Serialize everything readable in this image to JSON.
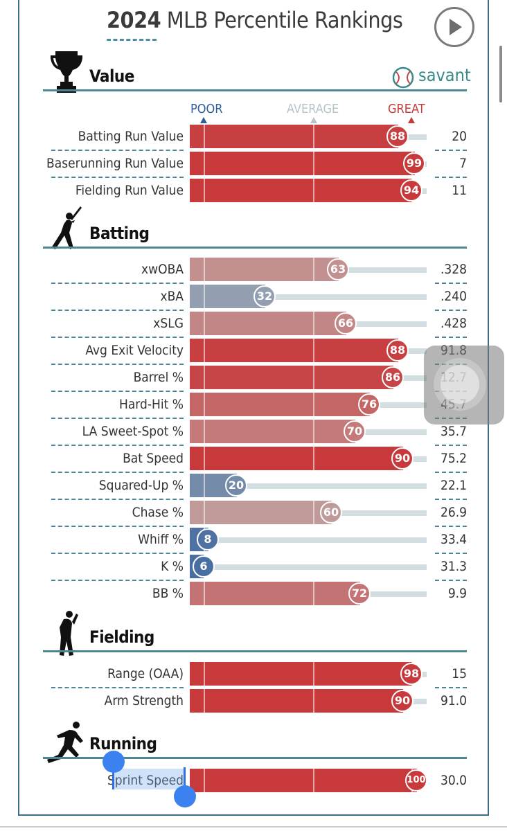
{
  "header": {
    "year": "2024",
    "title": "MLB Percentile Rankings"
  },
  "brand": {
    "name": "savant"
  },
  "scale": {
    "poor": "POOR",
    "average": "AVERAGE",
    "great": "GREAT"
  },
  "colors": {
    "accent": "#4d8797",
    "poor": "#2f5d9c",
    "great": "#c7393a"
  },
  "sections": [
    {
      "title": "Value",
      "icon": "trophy-icon",
      "rows": [
        {
          "label": "Batting Run Value",
          "pct": 88,
          "value": "20"
        },
        {
          "label": "Baserunning Run Value",
          "pct": 99,
          "value": "7"
        },
        {
          "label": "Fielding Run Value",
          "pct": 94,
          "value": "11"
        }
      ]
    },
    {
      "title": "Batting",
      "icon": "batter-icon",
      "rows": [
        {
          "label": "xwOBA",
          "pct": 63,
          "value": ".328"
        },
        {
          "label": "xBA",
          "pct": 32,
          "value": ".240"
        },
        {
          "label": "xSLG",
          "pct": 66,
          "value": ".428"
        },
        {
          "label": "Avg Exit Velocity",
          "pct": 88,
          "value": "91.8"
        },
        {
          "label": "Barrel %",
          "pct": 86,
          "value": "12.7"
        },
        {
          "label": "Hard-Hit %",
          "pct": 76,
          "value": "45.7"
        },
        {
          "label": "LA Sweet-Spot %",
          "pct": 70,
          "value": "35.7"
        },
        {
          "label": "Bat Speed",
          "pct": 90,
          "value": "75.2"
        },
        {
          "label": "Squared-Up %",
          "pct": 20,
          "value": "22.1"
        },
        {
          "label": "Chase %",
          "pct": 60,
          "value": "26.9"
        },
        {
          "label": "Whiff %",
          "pct": 8,
          "value": "33.4"
        },
        {
          "label": "K %",
          "pct": 6,
          "value": "31.3"
        },
        {
          "label": "BB %",
          "pct": 72,
          "value": "9.9"
        }
      ]
    },
    {
      "title": "Fielding",
      "icon": "fielder-icon",
      "rows": [
        {
          "label": "Range (OAA)",
          "pct": 98,
          "value": "15"
        },
        {
          "label": "Arm Strength",
          "pct": 90,
          "value": "91.0"
        }
      ]
    },
    {
      "title": "Running",
      "icon": "runner-icon",
      "rows": [
        {
          "label": "Sprint Speed",
          "pct": 100,
          "value": "30.0"
        }
      ]
    }
  ]
}
